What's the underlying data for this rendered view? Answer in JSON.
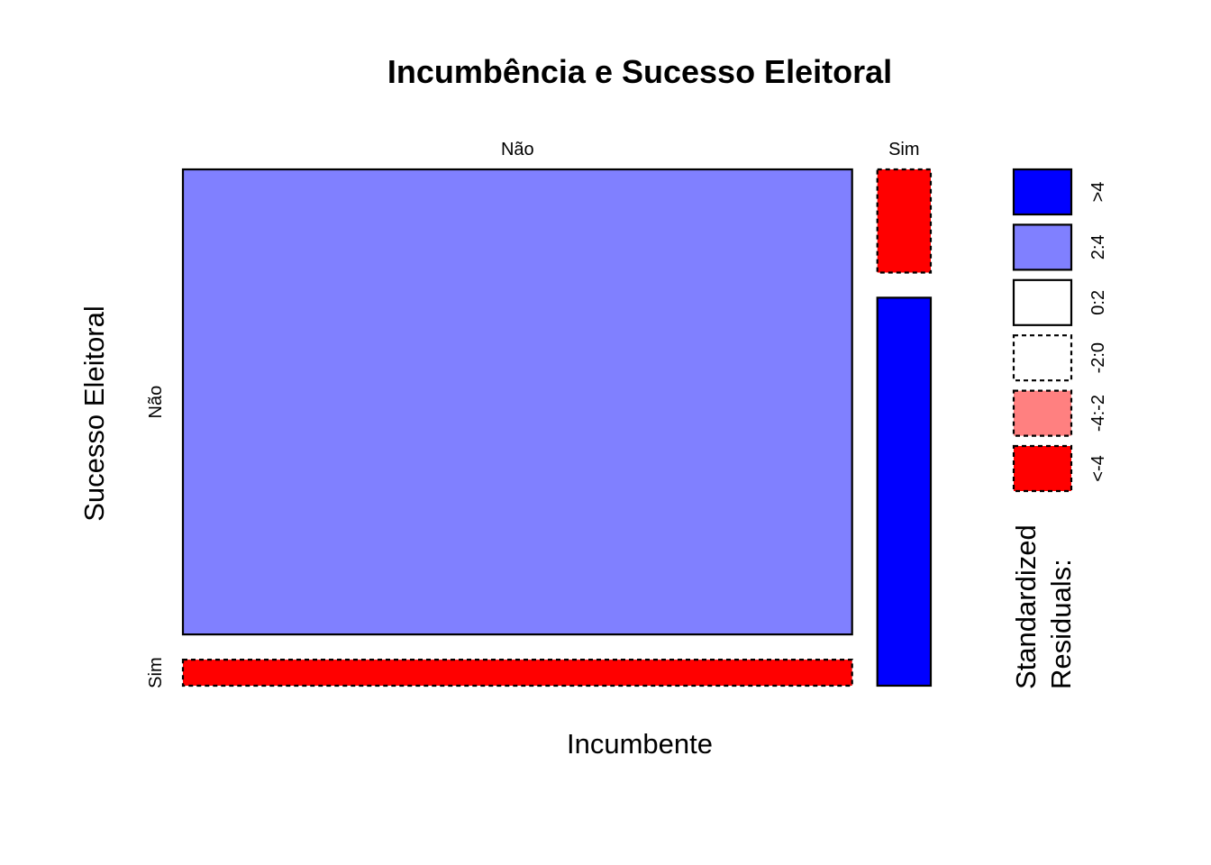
{
  "chart_data": {
    "type": "mosaic",
    "title": "Incumbência e Sucesso Eleitoral",
    "xlabel": "Incumbente",
    "ylabel": "Sucesso Eleitoral",
    "x_categories": [
      "Não",
      "Sim"
    ],
    "y_categories": [
      "Não",
      "Sim"
    ],
    "column_proportions": [
      0.926,
      0.074
    ],
    "cells": [
      {
        "x": "Não",
        "y": "Não",
        "proportion_in_column": 0.947,
        "residual_class": "2:4"
      },
      {
        "x": "Não",
        "y": "Sim",
        "proportion_in_column": 0.053,
        "residual_class": "<-4"
      },
      {
        "x": "Sim",
        "y": "Não",
        "proportion_in_column": 0.21,
        "residual_class": "<-4"
      },
      {
        "x": "Sim",
        "y": "Sim",
        "proportion_in_column": 0.79,
        "residual_class": ">4"
      }
    ],
    "legend": {
      "title_lines": [
        "Standardized",
        "Residuals:"
      ],
      "classes": [
        {
          "label": ">4",
          "color": "#0000FF",
          "dashed": false
        },
        {
          "label": "2:4",
          "color": "#8080FF",
          "dashed": false
        },
        {
          "label": "0:2",
          "color": "#FFFFFF",
          "dashed": false
        },
        {
          "label": "-2:0",
          "color": "#FFFFFF",
          "dashed": true
        },
        {
          "label": "-4:-2",
          "color": "#FF8080",
          "dashed": true
        },
        {
          "label": "<-4",
          "color": "#FF0000",
          "dashed": true
        }
      ]
    }
  }
}
